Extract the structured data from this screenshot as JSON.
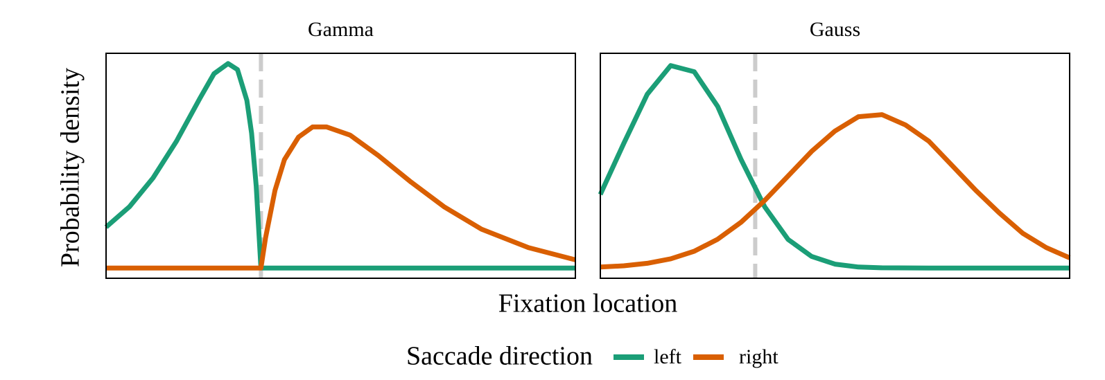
{
  "figure": {
    "xlabel": "Fixation location",
    "ylabel": "Probability density",
    "legend_title": "Saccade direction"
  },
  "chart_data": [
    {
      "type": "line",
      "title": "Gamma",
      "xlim": [
        0,
        10
      ],
      "ylim": [
        -0.05,
        1.05
      ],
      "threshold": 3.3,
      "series": [
        {
          "name": "left",
          "color": "#1b9e77",
          "x": [
            0,
            0.5,
            1,
            1.5,
            2,
            2.3,
            2.6,
            2.8,
            3.0,
            3.1,
            3.2,
            3.3,
            4,
            10
          ],
          "values": [
            0.2,
            0.3,
            0.44,
            0.62,
            0.83,
            0.95,
            1.0,
            0.97,
            0.82,
            0.66,
            0.4,
            0,
            0,
            0
          ]
        },
        {
          "name": "right",
          "color": "#d95f02",
          "x": [
            0,
            3.3,
            3.4,
            3.6,
            3.8,
            4.1,
            4.4,
            4.7,
            5.2,
            5.8,
            6.5,
            7.2,
            8,
            9,
            10
          ],
          "values": [
            0,
            0,
            0.15,
            0.38,
            0.53,
            0.64,
            0.69,
            0.69,
            0.65,
            0.55,
            0.42,
            0.3,
            0.19,
            0.1,
            0.04
          ]
        }
      ]
    },
    {
      "type": "line",
      "title": "Gauss",
      "xlim": [
        0,
        10
      ],
      "ylim": [
        -0.05,
        1.05
      ],
      "threshold": 3.3,
      "series": [
        {
          "name": "left",
          "color": "#1b9e77",
          "x": [
            0,
            0.5,
            1,
            1.5,
            2,
            2.5,
            3,
            3.5,
            4,
            4.5,
            5,
            5.5,
            6,
            7,
            8,
            9,
            10
          ],
          "values": [
            0.36,
            0.61,
            0.85,
            0.99,
            0.96,
            0.79,
            0.53,
            0.3,
            0.14,
            0.057,
            0.019,
            0.005,
            0.001,
            0,
            0,
            0,
            0
          ]
        },
        {
          "name": "right",
          "color": "#d95f02",
          "x": [
            0,
            0.5,
            1,
            1.5,
            2,
            2.5,
            3,
            3.5,
            4,
            4.5,
            5,
            5.5,
            6,
            6.5,
            7,
            7.5,
            8,
            8.5,
            9,
            9.5,
            10
          ],
          "values": [
            0.005,
            0.011,
            0.023,
            0.045,
            0.082,
            0.141,
            0.224,
            0.33,
            0.45,
            0.57,
            0.67,
            0.74,
            0.75,
            0.7,
            0.62,
            0.5,
            0.38,
            0.27,
            0.17,
            0.1,
            0.05
          ]
        }
      ]
    }
  ]
}
